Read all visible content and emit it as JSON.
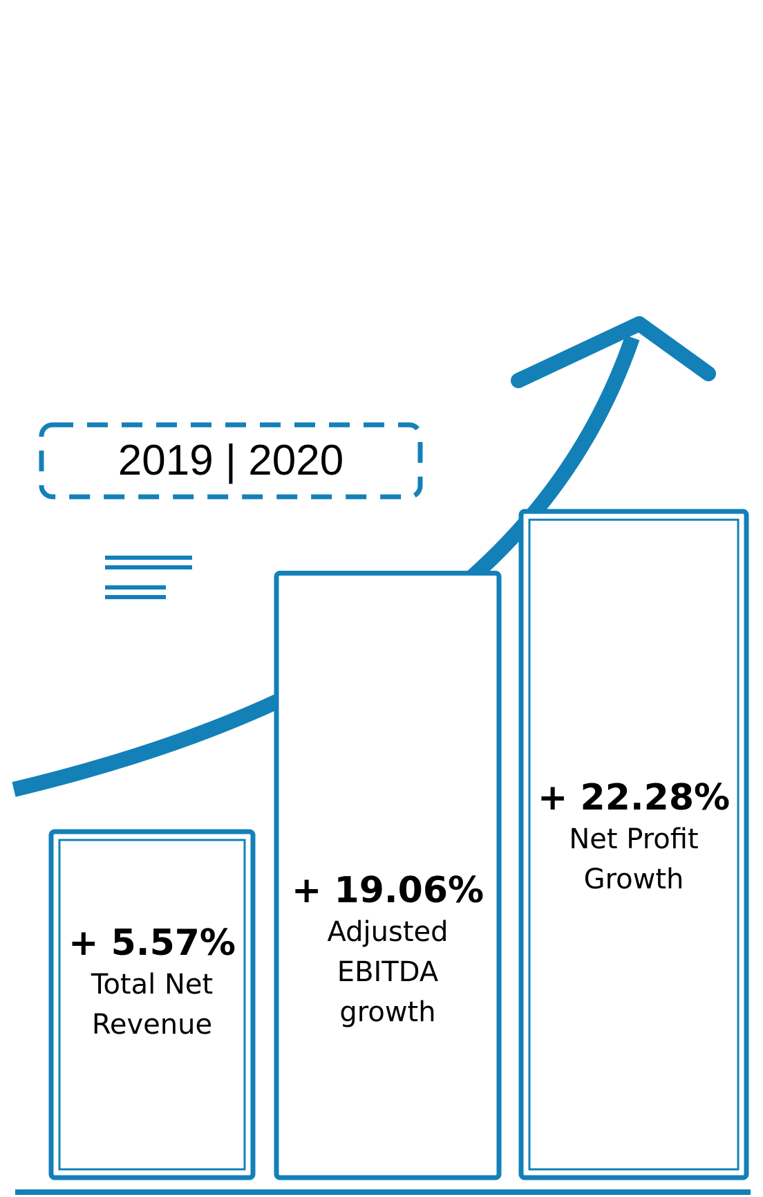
{
  "period_label": "2019 | 2020",
  "colors": {
    "accent": "#1380b8"
  },
  "chart_data": {
    "type": "bar",
    "categories": [
      "Total Net Revenue",
      "Adjusted EBITDA growth",
      "Net Profit Growth"
    ],
    "values": [
      5.57,
      19.06,
      22.28
    ],
    "value_labels": [
      "+ 5.57%",
      "+ 19.06%",
      "+ 22.28%"
    ],
    "label_lines": [
      [
        "Total Net",
        "Revenue"
      ],
      [
        "Adjusted",
        "EBITDA",
        "growth"
      ],
      [
        "Net Profit",
        "Growth"
      ]
    ],
    "bar_styles": [
      "double-border",
      "single-border",
      "double-border"
    ],
    "title": "",
    "xlabel": "",
    "ylabel": "",
    "ylim": [
      0,
      30
    ],
    "grid": false,
    "trend_arrow": "upward"
  }
}
